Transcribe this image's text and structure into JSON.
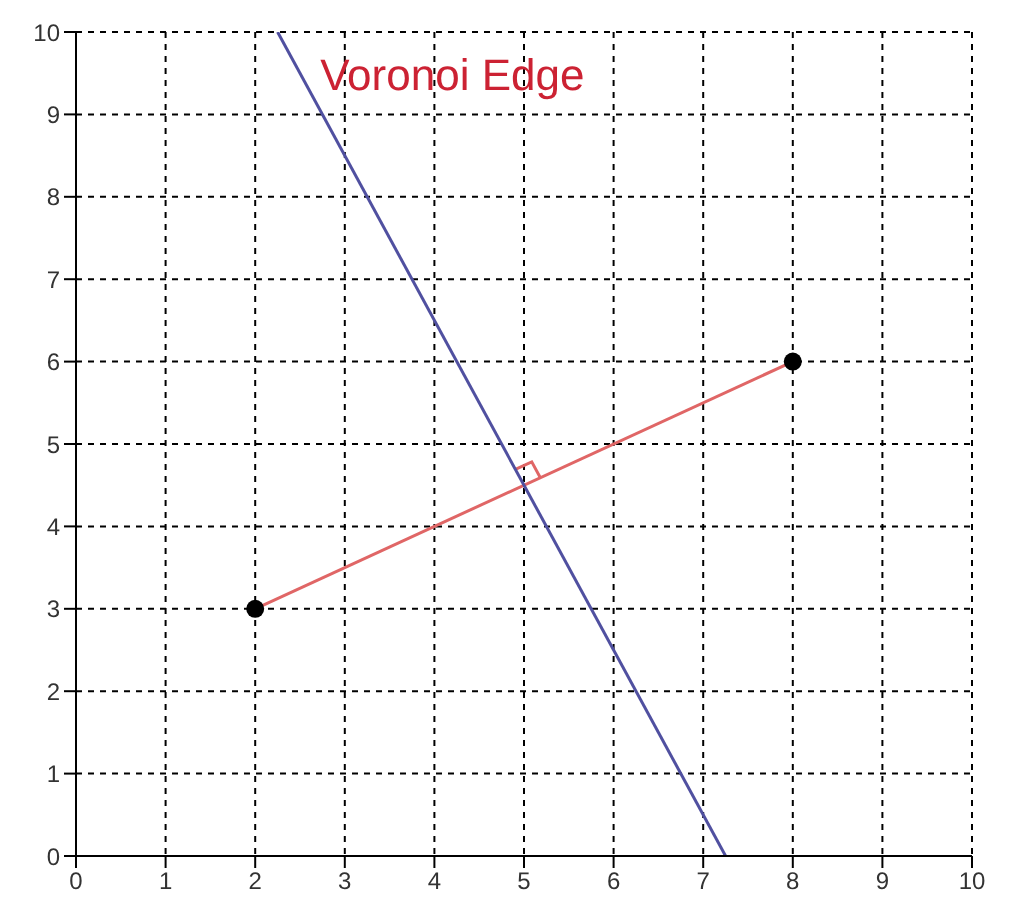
{
  "chart_data": {
    "type": "line",
    "title": "Voronoi Edge",
    "xlim": [
      0,
      10
    ],
    "ylim": [
      0,
      10
    ],
    "xticks": [
      0,
      1,
      2,
      3,
      4,
      5,
      6,
      7,
      8,
      9,
      10
    ],
    "yticks": [
      0,
      1,
      2,
      3,
      4,
      5,
      6,
      7,
      8,
      9,
      10
    ],
    "grid": true,
    "series": [
      {
        "color": "#e06666",
        "x": [
          2,
          8
        ],
        "values": [
          3,
          6
        ]
      },
      {
        "color": "#5050a0",
        "x": [
          2.25,
          7.25
        ],
        "values": [
          10,
          0
        ]
      },
      {
        "type": "scatter",
        "color": "#000000",
        "x": [
          2,
          8
        ],
        "values": [
          3,
          6
        ],
        "marker": "circle"
      }
    ]
  }
}
